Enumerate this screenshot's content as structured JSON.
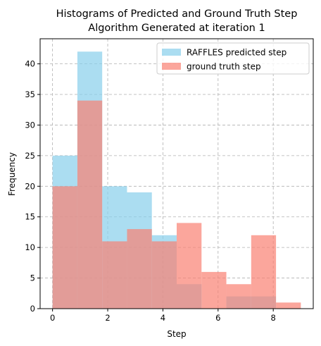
{
  "chart_data": {
    "type": "bar",
    "title_lines": [
      "Histograms of Predicted and Ground Truth Step",
      "Algorithm Generated at iteration 1"
    ],
    "xlabel": "Step",
    "ylabel": "Frequency",
    "xlim": [
      -0.45,
      9.45
    ],
    "ylim": [
      0,
      44.1
    ],
    "xticks": [
      0,
      2,
      4,
      6,
      8
    ],
    "yticks": [
      0,
      5,
      10,
      15,
      20,
      25,
      30,
      35,
      40
    ],
    "grid": true,
    "legend_position": "top-right",
    "series": [
      {
        "name": "RAFFLES predicted step",
        "color": "#87ceeb",
        "opacity": 0.7,
        "bin_edges": [
          0.0,
          0.9,
          1.8,
          2.7,
          3.6,
          4.5,
          5.4,
          6.3,
          7.2,
          8.1,
          9.0
        ],
        "counts": [
          25,
          42,
          20,
          19,
          12,
          4,
          0,
          2,
          2,
          0
        ]
      },
      {
        "name": "ground truth step",
        "color": "#fa8072",
        "opacity": 0.7,
        "bin_edges": [
          0.0,
          0.9,
          1.8,
          2.7,
          3.6,
          4.5,
          5.4,
          6.3,
          7.2,
          8.1,
          9.0
        ],
        "counts": [
          20,
          34,
          11,
          13,
          11,
          14,
          6,
          4,
          12,
          1
        ]
      }
    ]
  }
}
